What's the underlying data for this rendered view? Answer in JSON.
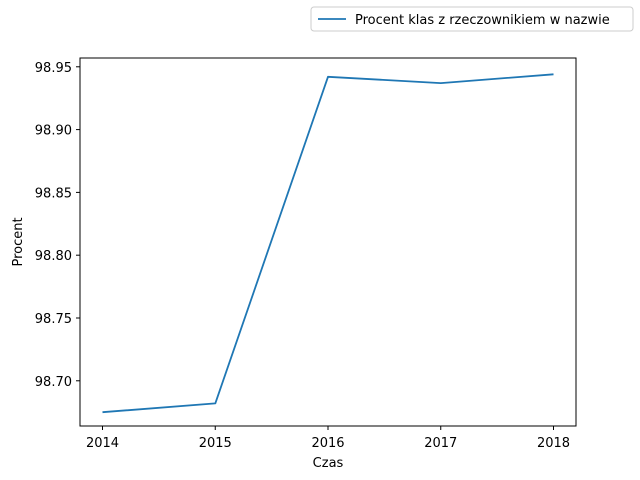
{
  "chart_data": {
    "type": "line",
    "title": "",
    "xlabel": "Czas",
    "ylabel": "Procent",
    "x": [
      "2014",
      "2015",
      "2016",
      "2017",
      "2018"
    ],
    "series": [
      {
        "name": "Procent klas z rzeczownikiem w nazwie",
        "values": [
          98.675,
          98.682,
          98.942,
          98.937,
          98.944
        ],
        "color": "#1f77b4"
      }
    ],
    "ylim": [
      98.664,
      98.957
    ],
    "yticks": [
      "98.70",
      "98.75",
      "98.80",
      "98.85",
      "98.90",
      "98.95"
    ],
    "grid": false,
    "legend_position": "top-right, outside plot"
  }
}
